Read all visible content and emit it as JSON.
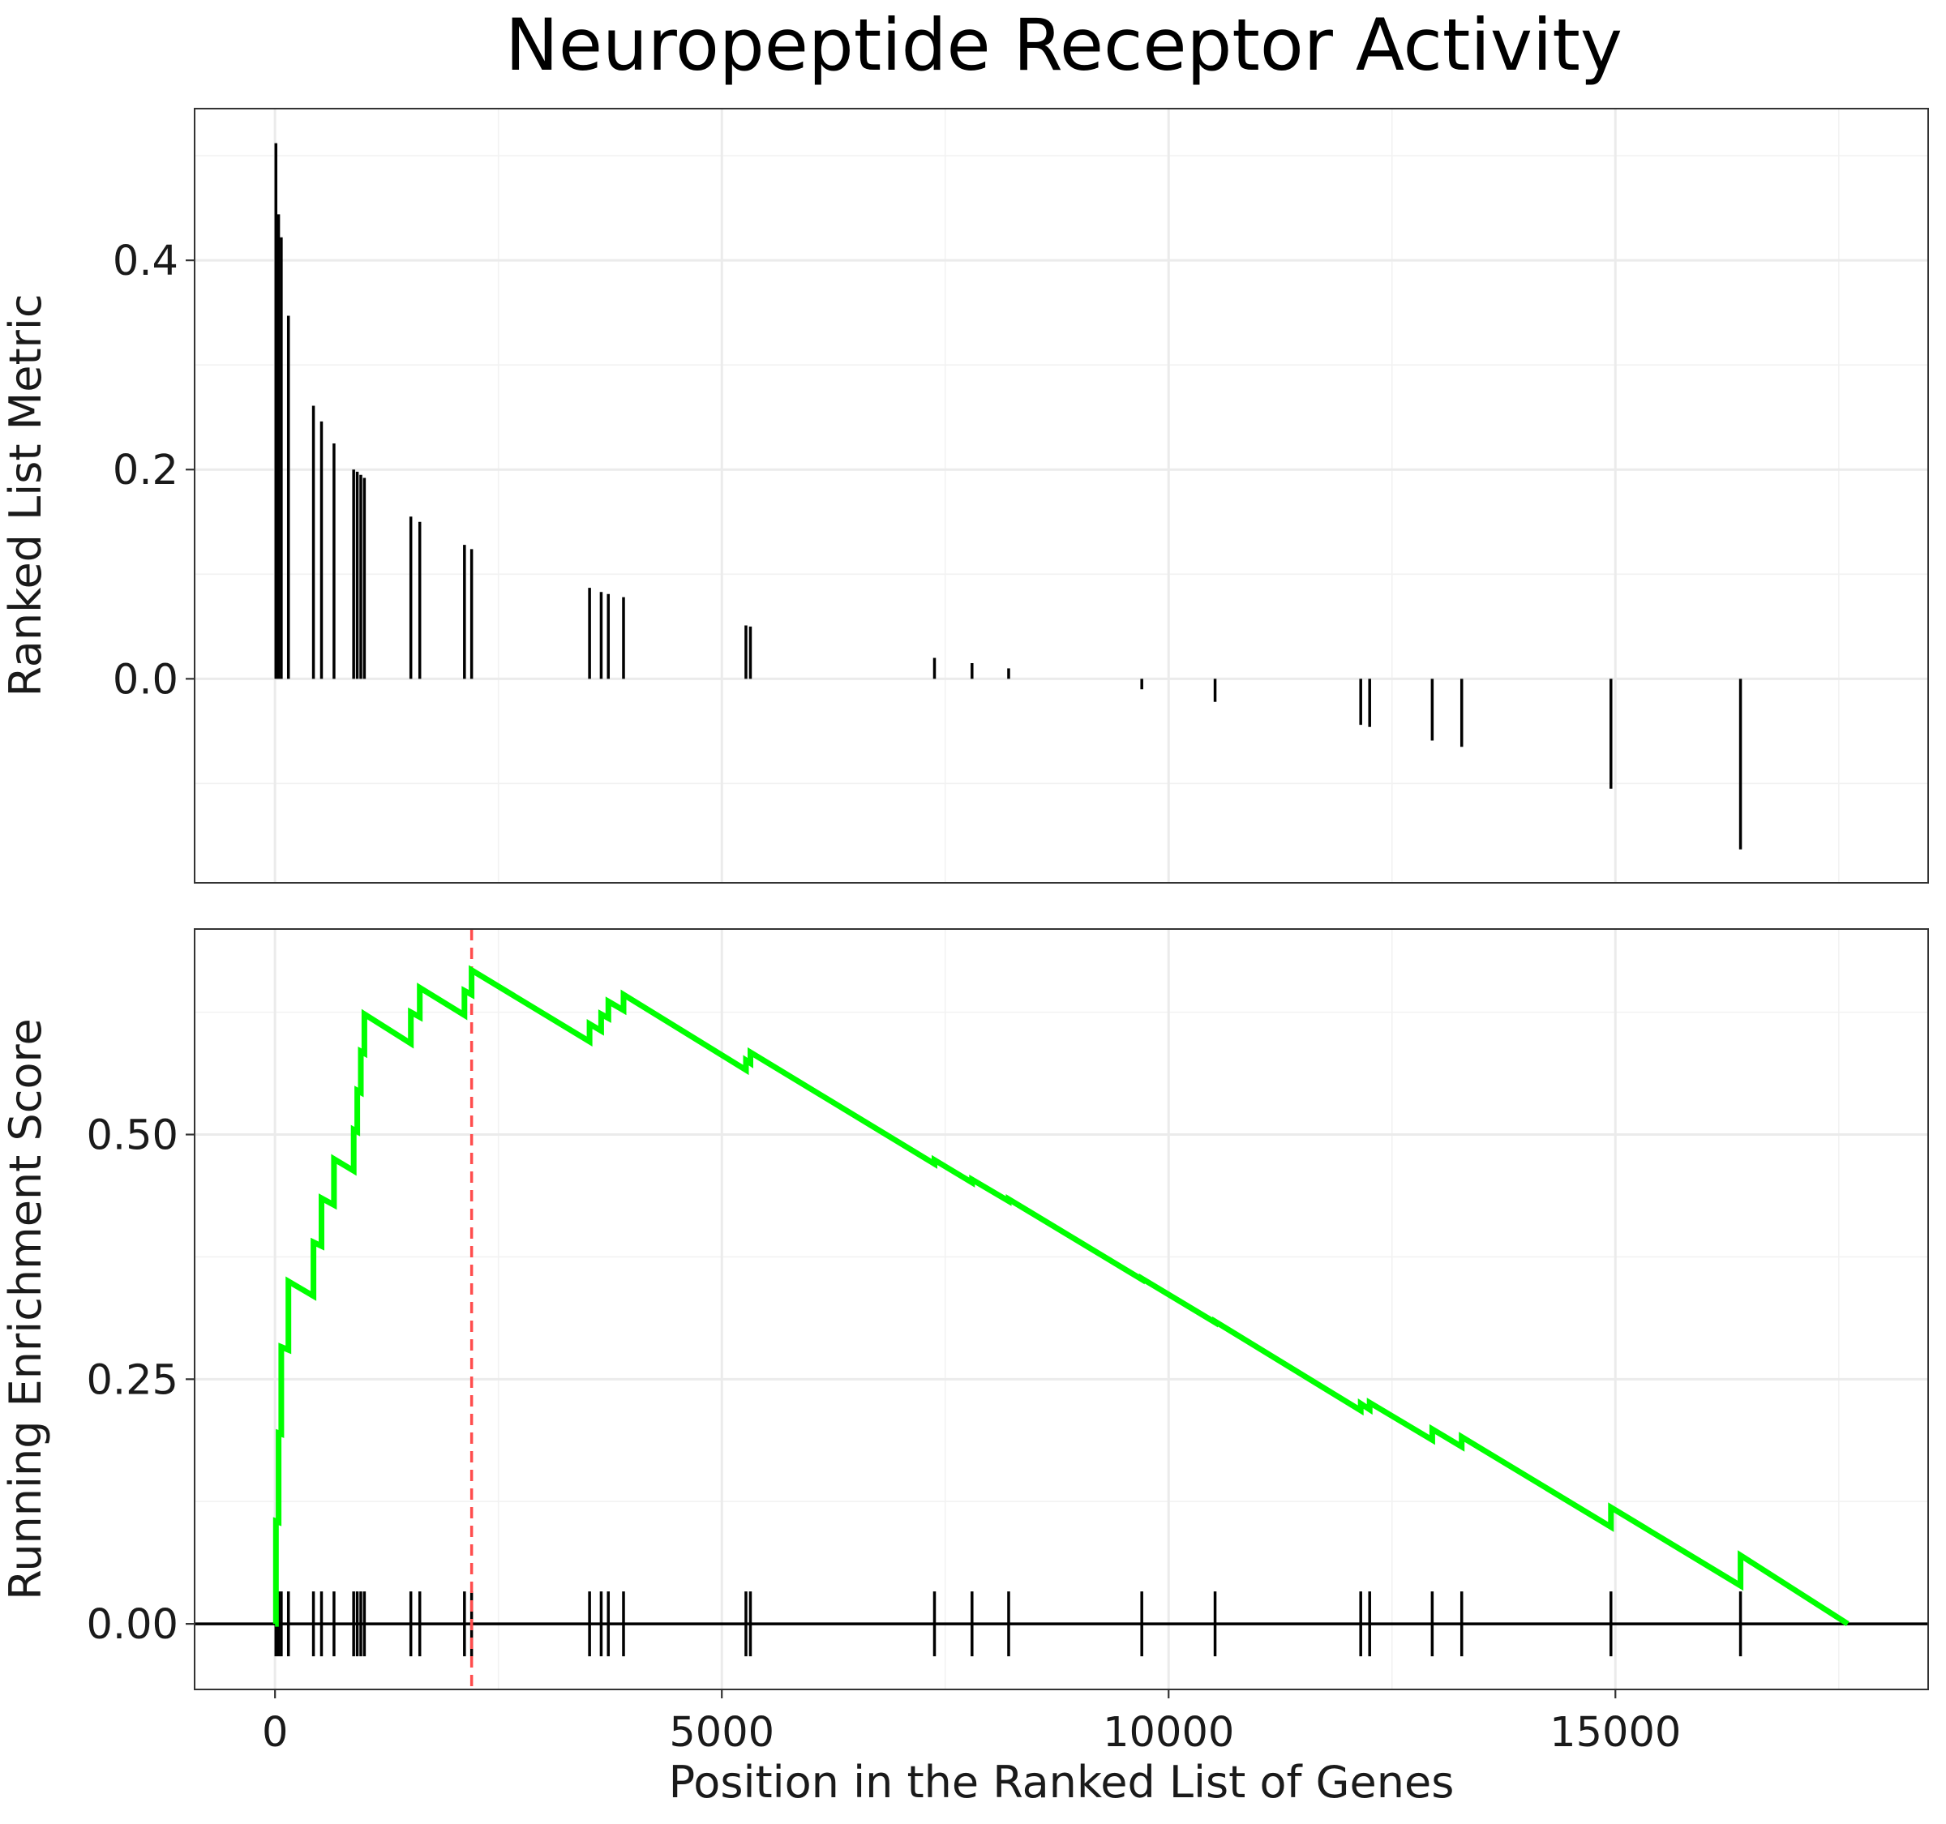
{
  "chart_data": [
    {
      "type": "bar",
      "title": "Neuropeptide Receptor Activity",
      "ylabel": "Ranked List Metric",
      "xlabel": "",
      "xlim": [
        -900,
        18500
      ],
      "ylim": [
        -0.195,
        0.545
      ],
      "x_ticks": [
        0,
        5000,
        10000,
        15000
      ],
      "y_ticks": [
        0.0,
        0.2,
        0.4
      ],
      "y_tick_labels": [
        "0.0",
        "0.2",
        "0.4"
      ],
      "grid": true,
      "bar_color": "#000000",
      "points": [
        {
          "x": 10,
          "y": 0.512
        },
        {
          "x": 40,
          "y": 0.444
        },
        {
          "x": 70,
          "y": 0.422
        },
        {
          "x": 150,
          "y": 0.347
        },
        {
          "x": 430,
          "y": 0.261
        },
        {
          "x": 520,
          "y": 0.246
        },
        {
          "x": 660,
          "y": 0.225
        },
        {
          "x": 880,
          "y": 0.2
        },
        {
          "x": 920,
          "y": 0.198
        },
        {
          "x": 960,
          "y": 0.195
        },
        {
          "x": 1000,
          "y": 0.192
        },
        {
          "x": 1520,
          "y": 0.155
        },
        {
          "x": 1620,
          "y": 0.15
        },
        {
          "x": 2120,
          "y": 0.128
        },
        {
          "x": 2200,
          "y": 0.124
        },
        {
          "x": 3520,
          "y": 0.087
        },
        {
          "x": 3650,
          "y": 0.083
        },
        {
          "x": 3730,
          "y": 0.081
        },
        {
          "x": 3900,
          "y": 0.078
        },
        {
          "x": 5270,
          "y": 0.051
        },
        {
          "x": 5320,
          "y": 0.05
        },
        {
          "x": 7380,
          "y": 0.02
        },
        {
          "x": 7800,
          "y": 0.015
        },
        {
          "x": 8210,
          "y": 0.01
        },
        {
          "x": 9700,
          "y": -0.01
        },
        {
          "x": 10520,
          "y": -0.022
        },
        {
          "x": 12150,
          "y": -0.044
        },
        {
          "x": 12250,
          "y": -0.046
        },
        {
          "x": 12950,
          "y": -0.059
        },
        {
          "x": 13280,
          "y": -0.065
        },
        {
          "x": 14950,
          "y": -0.105
        },
        {
          "x": 16400,
          "y": -0.163
        }
      ]
    },
    {
      "type": "line",
      "ylabel": "Running Enrichment Score",
      "xlabel": "Position in the Ranked List of Genes",
      "xlim": [
        -900,
        18500
      ],
      "ylim": [
        -0.067,
        0.71
      ],
      "x_ticks": [
        0,
        5000,
        10000,
        15000
      ],
      "x_tick_labels": [
        "0",
        "5000",
        "10000",
        "15000"
      ],
      "y_ticks": [
        0.0,
        0.25,
        0.5
      ],
      "y_tick_labels": [
        "0.00",
        "0.25",
        "0.50"
      ],
      "grid": true,
      "line_color": "#00ff00",
      "peak_marker": {
        "x": 2200,
        "color": "#ff4d4d",
        "style": "dashed"
      },
      "baseline_y": 0,
      "hit_positions": [
        10,
        40,
        70,
        150,
        430,
        520,
        660,
        880,
        920,
        960,
        1000,
        1520,
        1620,
        2120,
        2200,
        3520,
        3650,
        3730,
        3900,
        5270,
        5320,
        7380,
        7800,
        8210,
        9700,
        10520,
        12150,
        12250,
        12950,
        13280,
        14950,
        16400
      ],
      "series": [
        {
          "x": [
            0,
            10,
            10,
            40,
            40,
            70,
            70,
            150,
            150,
            430,
            430,
            520,
            520,
            660,
            660,
            880,
            880,
            920,
            920,
            960,
            960,
            1000,
            1000,
            1520,
            1520,
            1620,
            1620,
            2120,
            2120,
            2200,
            2200,
            3520,
            3520,
            3650,
            3650,
            3730,
            3730,
            3900,
            3900,
            5270,
            5270,
            5320,
            5320,
            7380,
            7380,
            7800,
            7800,
            8210,
            8210,
            9700,
            9700,
            10520,
            10520,
            12150,
            12150,
            12250,
            12250,
            12950,
            12950,
            13280,
            13280,
            14950,
            14950,
            16400,
            16400,
            17600
          ],
          "y": [
            0.0,
            0.0,
            0.105,
            0.104,
            0.195,
            0.194,
            0.283,
            0.28,
            0.35,
            0.335,
            0.39,
            0.386,
            0.435,
            0.428,
            0.475,
            0.463,
            0.505,
            0.503,
            0.545,
            0.543,
            0.585,
            0.583,
            0.623,
            0.593,
            0.625,
            0.62,
            0.65,
            0.622,
            0.647,
            0.643,
            0.668,
            0.595,
            0.613,
            0.606,
            0.623,
            0.619,
            0.636,
            0.627,
            0.643,
            0.566,
            0.576,
            0.573,
            0.584,
            0.47,
            0.474,
            0.451,
            0.454,
            0.432,
            0.434,
            0.352,
            0.353,
            0.308,
            0.309,
            0.218,
            0.225,
            0.219,
            0.226,
            0.188,
            0.199,
            0.181,
            0.191,
            0.099,
            0.119,
            0.039,
            0.07,
            0.0
          ]
        }
      ]
    }
  ]
}
